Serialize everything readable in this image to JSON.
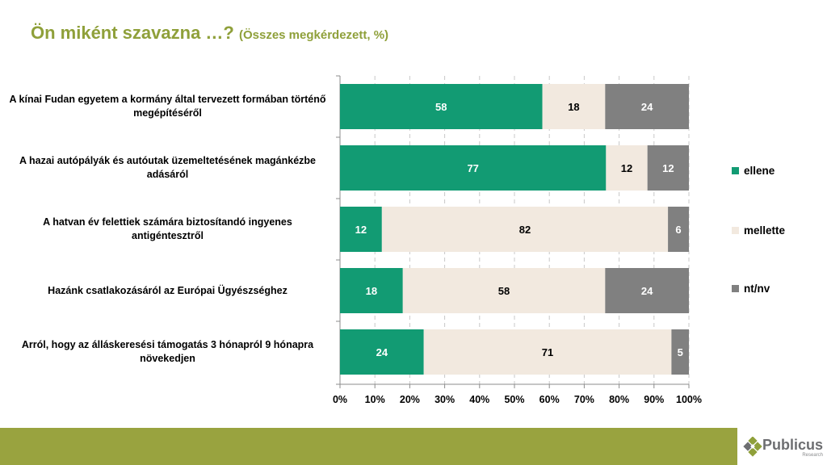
{
  "title": {
    "main": "Ön miként szavazna …?",
    "sub": "(Összes megkérdezett, %)"
  },
  "colors": {
    "title": "#8fa03a",
    "ellene": "#129b73",
    "mellette": "#f2e9df",
    "ntnv": "#808080",
    "footer_band": "#99a33f"
  },
  "chart_data": {
    "type": "bar",
    "orientation": "horizontal",
    "stacked": "100%",
    "title": "Ön miként szavazna …? (Összes megkérdezett, %)",
    "xlabel": "",
    "ylabel": "",
    "xlim": [
      0,
      100
    ],
    "x_ticks": [
      "0%",
      "10%",
      "20%",
      "30%",
      "40%",
      "50%",
      "60%",
      "70%",
      "80%",
      "90%",
      "100%"
    ],
    "grid": "vertical dashed",
    "legend_position": "right",
    "categories": [
      "A kínai Fudan egyetem a kormány által tervezett formában történő megépítéséről",
      "A hazai autópályák és autóutak üzemeltetésének magánkézbe adásáról",
      "A hatvan év felettiek számára biztosítandó ingyenes antigéntesztről",
      "Hazánk csatlakozásáról az Európai Ügyészséghez",
      "Arról, hogy az álláskeresési támogatás 3 hónapról 9 hónapra növekedjen"
    ],
    "series": [
      {
        "name": "ellene",
        "color": "#129b73",
        "label_color": "#ffffff",
        "values": [
          58,
          77,
          12,
          18,
          24
        ]
      },
      {
        "name": "mellette",
        "color": "#f2e9df",
        "label_color": "#000000",
        "values": [
          18,
          12,
          82,
          58,
          71
        ]
      },
      {
        "name": "nt/nv",
        "color": "#808080",
        "label_color": "#ffffff",
        "values": [
          24,
          12,
          6,
          24,
          5
        ]
      }
    ]
  },
  "logo": {
    "name": "Publicus",
    "sub": "Research"
  }
}
